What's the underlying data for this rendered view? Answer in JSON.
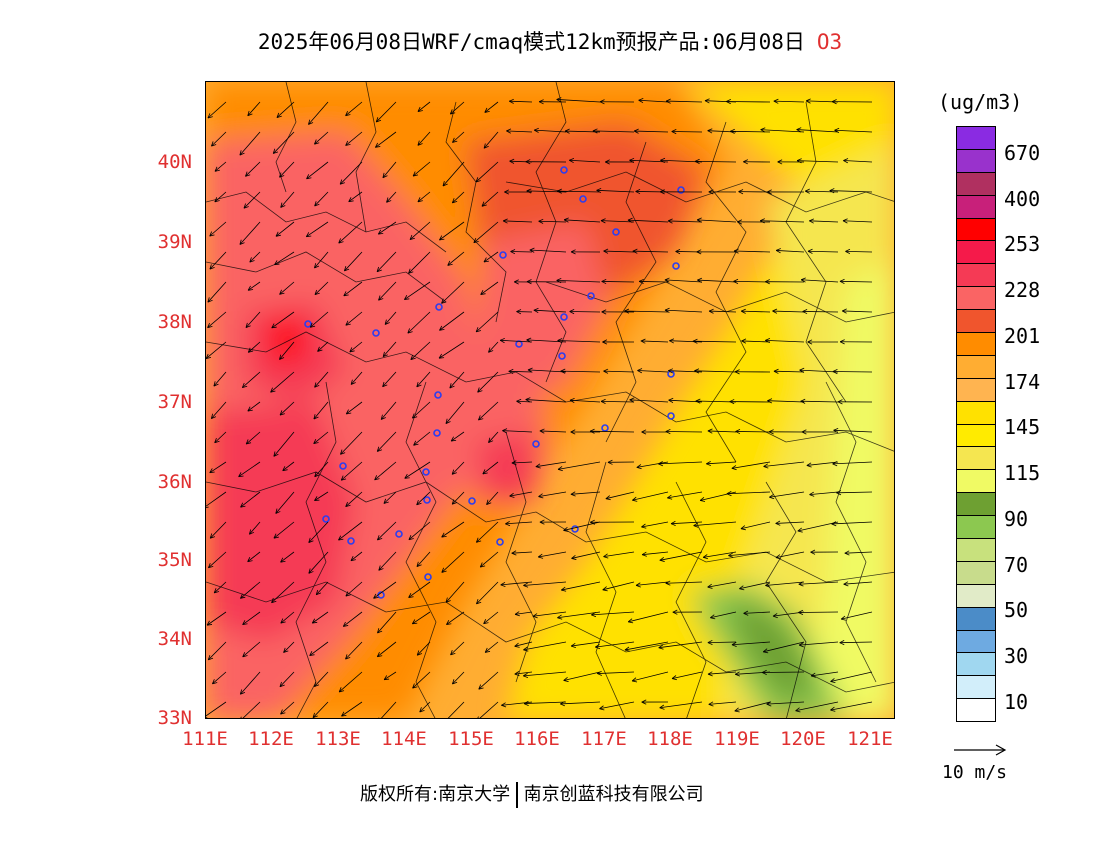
{
  "title": {
    "main": "2025年06月08日WRF/cmaq模式12km预报产品:06月08日",
    "species": "O3"
  },
  "map": {
    "lat_ticks": [
      "40N",
      "39N",
      "38N",
      "37N",
      "36N",
      "35N",
      "34N",
      "33N"
    ],
    "lon_ticks": [
      "111E",
      "112E",
      "113E",
      "114E",
      "115E",
      "116E",
      "117E",
      "118E",
      "119E",
      "120E",
      "121E"
    ],
    "lat_range": [
      33,
      41
    ],
    "lon_range": [
      111,
      121.4
    ],
    "tick_color": "#e03030"
  },
  "colorbar": {
    "unit": "(ug/m3)",
    "colors_top_to_bottom": [
      "#8a2be2",
      "#9932cc",
      "#b03060",
      "#c8207a",
      "#ff0000",
      "#f51a4a",
      "#f53a55",
      "#fa6464",
      "#f0552d",
      "#ff8c00",
      "#ffad32",
      "#ffb450",
      "#ffe100",
      "#ffeb00",
      "#f5e650",
      "#f0fa64",
      "#6ea032",
      "#8cc850",
      "#c8e17d",
      "#c8dc8c",
      "#e1ebc8",
      "#4b8cc8",
      "#6eaae1",
      "#a0d7f0",
      "#d2eefa",
      "#ffffff"
    ],
    "labels": [
      "670",
      "400",
      "253",
      "228",
      "201",
      "174",
      "145",
      "115",
      "90",
      "70",
      "50",
      "30",
      "10"
    ]
  },
  "reference_vector": {
    "label": "10 m/s"
  },
  "copyright": {
    "prefix": "版权所有:南京大学",
    "company": "南京创蓝科技有限公司"
  }
}
